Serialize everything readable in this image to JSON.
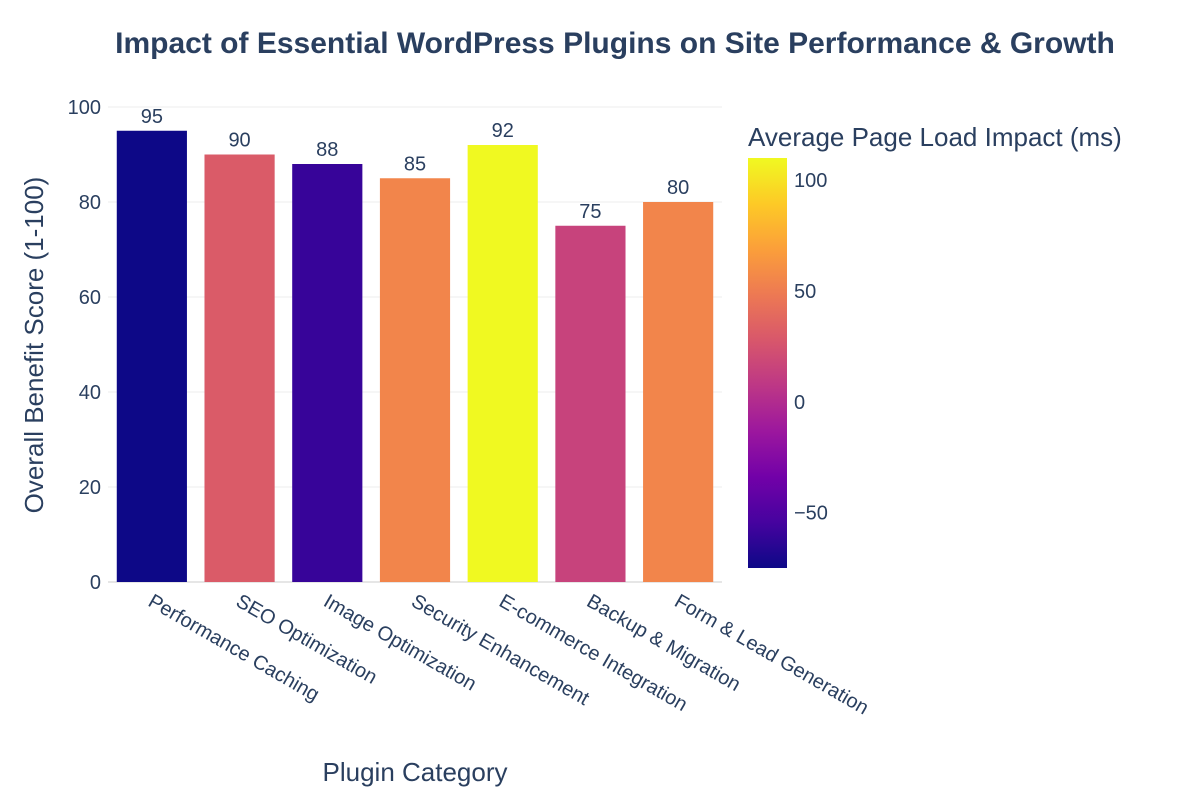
{
  "chart_data": {
    "type": "bar",
    "title": "Impact of Essential WordPress Plugins on Site Performance & Growth",
    "xlabel": "Plugin Category",
    "ylabel": "Overall Benefit Score (1-100)",
    "ylim": [
      0,
      100
    ],
    "yticks": [
      0,
      20,
      40,
      60,
      80,
      100
    ],
    "grid": true,
    "legend": "none",
    "categories": [
      "Performance Caching",
      "SEO Optimization",
      "Image Optimization",
      "Security Enhancement",
      "E-commerce Integration",
      "Backup & Migration",
      "Form & Lead Generation"
    ],
    "values": [
      95,
      90,
      88,
      85,
      92,
      75,
      80
    ],
    "color_values": [
      -75,
      30,
      -60,
      55,
      110,
      15,
      55
    ],
    "colorbar": {
      "title": "Average Page Load Impact (ms)",
      "range": [
        -75,
        110
      ],
      "ticks": [
        100,
        50,
        0,
        -50
      ],
      "tick_labels": [
        "100",
        "50",
        "0",
        "−50"
      ],
      "colorscale": [
        "#0d0887",
        "#46039f",
        "#7201a8",
        "#9c179e",
        "#bd3786",
        "#d8576b",
        "#ed7953",
        "#fb9f3a",
        "#fdca26",
        "#f0f921"
      ]
    }
  }
}
